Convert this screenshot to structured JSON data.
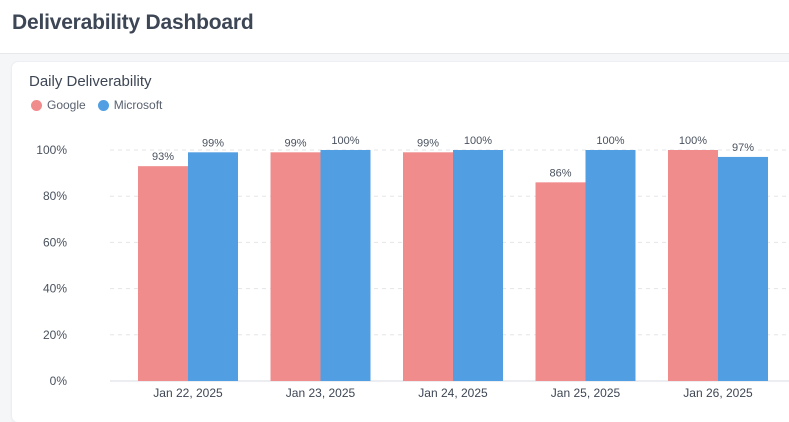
{
  "header": {
    "title": "Deliverability Dashboard"
  },
  "card": {
    "title": "Daily Deliverability"
  },
  "chart_data": {
    "type": "bar",
    "title": "Daily Deliverability",
    "categories": [
      "Jan 22, 2025",
      "Jan 23, 2025",
      "Jan 24, 2025",
      "Jan 25, 2025",
      "Jan 26, 2025"
    ],
    "series": [
      {
        "name": "Google",
        "color": "#f08c8c",
        "values": [
          93,
          99,
          99,
          86,
          100
        ],
        "labels": [
          "93%",
          "99%",
          "99%",
          "86%",
          "100%"
        ]
      },
      {
        "name": "Microsoft",
        "color": "#519fe2",
        "values": [
          99,
          100,
          100,
          100,
          97
        ],
        "labels": [
          "99%",
          "100%",
          "100%",
          "100%",
          "97%"
        ]
      }
    ],
    "yticks": [
      "0%",
      "20%",
      "40%",
      "60%",
      "80%",
      "100%"
    ],
    "ylim": [
      0,
      100
    ],
    "grid": true,
    "legend_position": "top-left"
  }
}
